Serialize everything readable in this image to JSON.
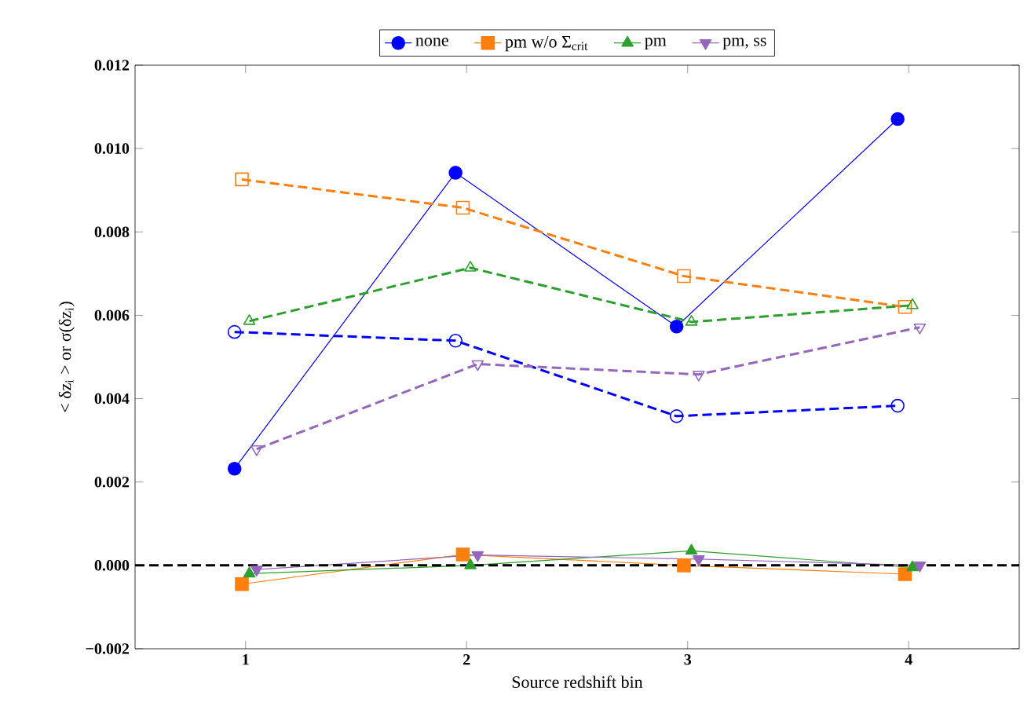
{
  "chart_data": {
    "type": "line",
    "xlabel": "Source redshift bin",
    "ylabel": "< δz$_{i}$ > or σ(δz$_{i}$)",
    "xlim": [
      0.5,
      4.5
    ],
    "xticks": [
      1,
      2,
      3,
      4
    ],
    "ylim": [
      -0.002,
      0.012
    ],
    "yticks": [
      {
        "value": -0.002,
        "label": "−0.002"
      },
      {
        "value": 0,
        "label": "0.000"
      },
      {
        "value": 0.002,
        "label": "0.002"
      },
      {
        "value": 0.004,
        "label": "0.004"
      },
      {
        "value": 0.006,
        "label": "0.006"
      },
      {
        "value": 0.008,
        "label": "0.008"
      },
      {
        "value": 0.01,
        "label": "0.010"
      },
      {
        "value": 0.012,
        "label": "0.012"
      }
    ],
    "grid": false,
    "legend": "top",
    "series": [
      {
        "name": "none",
        "color": "#0000ff",
        "marker": "circle",
        "line_style": "solid",
        "x": [
          0.95,
          1.95,
          2.95,
          3.95
        ],
        "values": [
          0.00232,
          0.00942,
          0.00573,
          0.01071
        ]
      },
      {
        "name": "pm w/o Σ$_{crit}$",
        "color": "#ff7f0e",
        "marker": "square",
        "line_style": "solid",
        "x": [
          0.983,
          1.983,
          2.983,
          3.983
        ],
        "values": [
          -0.00045,
          0.00026,
          0.0,
          -0.00021
        ]
      },
      {
        "name": "pm",
        "color": "#2ca02c",
        "marker": "triangle",
        "line_style": "solid",
        "x": [
          1.017,
          2.017,
          3.017,
          4.017
        ],
        "values": [
          -0.0002,
          0.0,
          0.00035,
          -5e-05
        ]
      },
      {
        "name": "pm, ss",
        "color": "#9467bd",
        "marker": "triangle down",
        "line_style": "solid",
        "x": [
          1.05,
          2.05,
          3.05,
          4.05
        ],
        "values": [
          -0.0001,
          0.00025,
          0.00015,
          0.0
        ]
      },
      {
        "color": "#0000ff",
        "marker": "circle",
        "line_style": "dashed",
        "x": [
          0.95,
          1.95,
          2.95,
          3.95
        ],
        "values": [
          0.0056,
          0.00539,
          0.00358,
          0.00383
        ]
      },
      {
        "color": "#ff7f0e",
        "marker": "square",
        "line_style": "dashed",
        "x": [
          0.983,
          1.983,
          2.983,
          3.983
        ],
        "values": [
          0.00926,
          0.00858,
          0.00694,
          0.0062
        ]
      },
      {
        "color": "#2ca02c",
        "marker": "triangle",
        "line_style": "dashed",
        "x": [
          1.017,
          2.017,
          3.017,
          4.017
        ],
        "values": [
          0.00586,
          0.00714,
          0.00584,
          0.00624
        ]
      },
      {
        "color": "#9467bd",
        "marker": "triangle down",
        "line_style": "dashed",
        "x": [
          1.05,
          2.05,
          3.05,
          4.05
        ],
        "values": [
          0.00279,
          0.00483,
          0.00458,
          0.00571
        ]
      }
    ],
    "ref_lines": [
      {
        "axis": "y",
        "value": 0,
        "color": "#000000",
        "line_style": "dashed"
      }
    ]
  }
}
